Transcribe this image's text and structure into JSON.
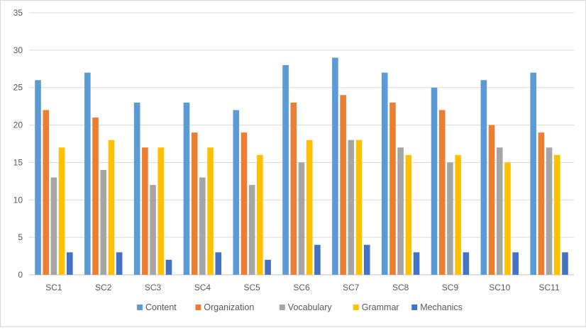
{
  "chart_data": {
    "type": "bar",
    "categories": [
      "SC1",
      "SC2",
      "SC3",
      "SC4",
      "SC5",
      "SC6",
      "SC7",
      "SC8",
      "SC9",
      "SC10",
      "SC11"
    ],
    "series": [
      {
        "name": "Content",
        "color": "#5B9BD5",
        "values": [
          26,
          27,
          23,
          23,
          22,
          28,
          29,
          27,
          25,
          26,
          27
        ]
      },
      {
        "name": "Organization",
        "color": "#ED7D31",
        "values": [
          22,
          21,
          17,
          19,
          19,
          23,
          24,
          23,
          22,
          20,
          19
        ]
      },
      {
        "name": "Vocabulary",
        "color": "#A5A5A5",
        "values": [
          13,
          14,
          12,
          13,
          12,
          15,
          18,
          17,
          15,
          17,
          17
        ]
      },
      {
        "name": "Grammar",
        "color": "#FFC000",
        "values": [
          17,
          18,
          17,
          17,
          16,
          18,
          18,
          16,
          16,
          15,
          16
        ]
      },
      {
        "name": "Mechanics",
        "color": "#4472C4",
        "values": [
          3,
          3,
          2,
          3,
          2,
          4,
          4,
          3,
          3,
          3,
          3
        ]
      }
    ],
    "title": "",
    "xlabel": "",
    "ylabel": "",
    "ylim": [
      0,
      35
    ],
    "yticks": [
      0,
      5,
      10,
      15,
      20,
      25,
      30,
      35
    ],
    "grid": true,
    "legend_position": "bottom"
  }
}
